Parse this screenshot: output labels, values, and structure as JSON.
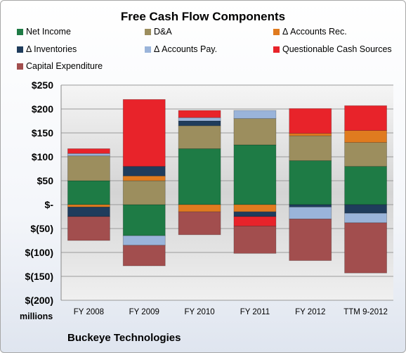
{
  "chart_data": {
    "type": "bar",
    "stacked": true,
    "title": "Free Cash Flow Components",
    "categories": [
      "FY 2008",
      "FY 2009",
      "FY 2010",
      "FY 2011",
      "FY 2012",
      "TTM 9-2012"
    ],
    "y_ticks": [
      "$250",
      "$200",
      "$150",
      "$100",
      "$50",
      "$-",
      "$(50)",
      "$(100)",
      "$(150)",
      "$(200)"
    ],
    "ylim": [
      -200,
      250
    ],
    "ylabel": "millions",
    "grid": true,
    "legend_position": "top",
    "series": [
      {
        "name": "Net Income",
        "color": "#1e7b45",
        "values": [
          50,
          -65,
          117,
          125,
          92,
          80
        ]
      },
      {
        "name": "D&A",
        "color": "#9c8e5e",
        "values": [
          52,
          50,
          48,
          55,
          52,
          50
        ]
      },
      {
        "name": "Δ Accounts Rec.",
        "color": "#e07b1f",
        "values": [
          -5,
          10,
          -15,
          -15,
          5,
          25
        ]
      },
      {
        "name": "Δ Inventories",
        "color": "#1f3c5c",
        "values": [
          -20,
          20,
          10,
          -10,
          -5,
          -18
        ]
      },
      {
        "name": "Δ Accounts Pay.",
        "color": "#9ab4da",
        "values": [
          5,
          -20,
          7,
          17,
          -25,
          -20
        ]
      },
      {
        "name": "Questionable Cash Sources",
        "color": "#e8232a",
        "values": [
          10,
          140,
          15,
          -20,
          52,
          52
        ]
      },
      {
        "name": "Capital Expenditure",
        "color": "#a24e4e",
        "values": [
          -50,
          -43,
          -48,
          -57,
          -87,
          -105
        ]
      }
    ]
  },
  "footer": {
    "company": "Buckeye Technologies"
  }
}
